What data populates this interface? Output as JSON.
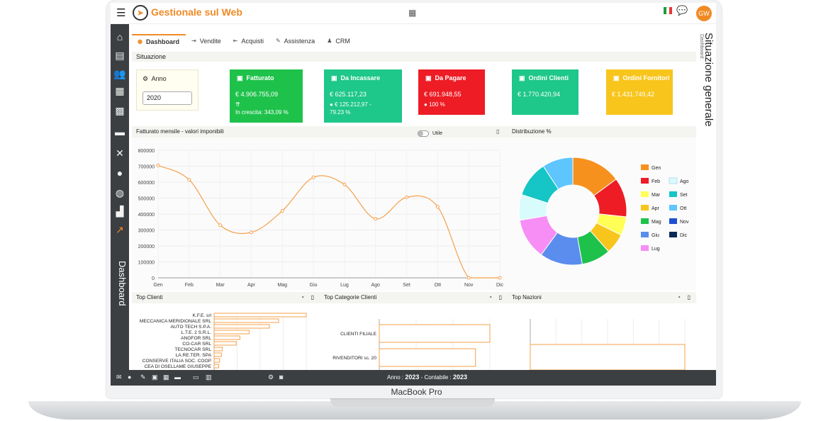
{
  "app": {
    "title": "Gestionale sul Web",
    "avatar_initials": "GW",
    "menu_icon": "menu-icon",
    "logo_icon": "cursor-logo-icon"
  },
  "device_label": "MacBook Pro",
  "right_panel": {
    "subtitle": "Dashboard:",
    "title": "Situazione generale"
  },
  "sidebar": {
    "label": "Dashboard",
    "items": [
      {
        "icon": "home-icon",
        "glyph": "⌂"
      },
      {
        "icon": "document-icon",
        "glyph": "▤"
      },
      {
        "icon": "people-icon",
        "glyph": "👥"
      },
      {
        "icon": "boxes-icon",
        "glyph": "▦"
      },
      {
        "icon": "calculator-icon",
        "glyph": "▩"
      },
      {
        "icon": "car-icon",
        "glyph": "▬"
      },
      {
        "icon": "tools-icon",
        "glyph": "✕"
      },
      {
        "icon": "user-icon",
        "glyph": "●"
      },
      {
        "icon": "globe-icon",
        "glyph": "◍"
      },
      {
        "icon": "factory-icon",
        "glyph": "▟"
      },
      {
        "icon": "chart-icon",
        "glyph": "↗"
      }
    ]
  },
  "tabs": [
    {
      "label": "Dashboard",
      "icon": "dashboard-icon",
      "glyph": "◉"
    },
    {
      "label": "Vendite",
      "icon": "sales-icon",
      "glyph": "⇥"
    },
    {
      "label": "Acquisti",
      "icon": "purchases-icon",
      "glyph": "⇤"
    },
    {
      "label": "Assistenza",
      "icon": "wrench-icon",
      "glyph": "✎"
    },
    {
      "label": "CRM",
      "icon": "crm-icon",
      "glyph": "♟"
    }
  ],
  "situazione": {
    "title": "Situazione",
    "year_label": "Anno",
    "year_value": "2020"
  },
  "kpis": [
    {
      "title": "Fatturato",
      "value": "€ 4.906.755,09",
      "sub1": "",
      "sub2": "In crescita: 343,09 %",
      "color": "#1ec24b"
    },
    {
      "title": "Da Incassare",
      "value": "€ 625.117,23",
      "sub1": "€ 125.212,97 -",
      "sub2": "79.23 %",
      "color": "#1ec78a"
    },
    {
      "title": "Da Pagare",
      "value": "€ 691.948,55",
      "sub1": "100 %",
      "sub2": "",
      "color": "#ee1c25"
    },
    {
      "title": "Ordini Clienti",
      "value": "€ 1.770.420,94",
      "sub1": "",
      "sub2": "",
      "color": "#1ec78a"
    },
    {
      "title": "Ordini Fornitori",
      "value": "€ 1.431.749,42",
      "sub1": "",
      "sub2": "",
      "color": "#f8c51c"
    }
  ],
  "fatturato_panel": {
    "title": "Fatturato mensile - valori imponibili",
    "toggle_label": "Utile"
  },
  "distribuzione_panel": {
    "title": "Distribuzione %"
  },
  "chart_data": [
    {
      "type": "line",
      "title": "Fatturato mensile - valori imponibili",
      "categories": [
        "Gen",
        "Feb",
        "Mar",
        "Apr",
        "Mag",
        "Giu",
        "Lug",
        "Ago",
        "Set",
        "Ott",
        "Nov",
        "Dic"
      ],
      "values": [
        705000,
        615000,
        330000,
        285000,
        420000,
        630000,
        585000,
        370000,
        505000,
        445000,
        0,
        0
      ],
      "ylim": [
        0,
        800000
      ],
      "yticks": [
        "800000",
        "700000",
        "600000",
        "500000",
        "400000",
        "300000",
        "200000",
        "100000",
        "0"
      ],
      "color": "#f5a04a",
      "grid": true
    },
    {
      "type": "pie",
      "title": "Distribuzione %",
      "labels": [
        "Gen",
        "Feb",
        "Mar",
        "Apr",
        "Mag",
        "Giu",
        "Lug",
        "Ago",
        "Set",
        "Ott",
        "Nov",
        "Dic"
      ],
      "values": [
        14.5,
        11.5,
        5.5,
        6.0,
        8.5,
        12.5,
        12.0,
        7.5,
        10.5,
        9.0,
        0,
        0
      ],
      "colors": [
        "#f7911e",
        "#ee1c25",
        "#ffff55",
        "#f8c51c",
        "#1ec24b",
        "#5b8def",
        "#f68ef5",
        "#d8fbfb",
        "#16c5c5",
        "#5ec5ff",
        "#1f4fd2",
        "#0a2a55"
      ],
      "legend": "right"
    },
    {
      "type": "bar",
      "title": "Top Clienti",
      "orientation": "horizontal",
      "categories": [
        "K.F.E. srl",
        "MECCANICA MERIDIONALE SRL",
        "AUTO TECH S.P.A.",
        "L.T.E. 2 S.R.L.",
        "ANOFOR SRL",
        "CO-CAR SRL",
        "TECNOCAR SRL",
        "LA.RE.TER. SPA",
        "CONSERVE ITALIA SOC. COOP",
        "CEA DI OSELLAME GIUSEPPE"
      ],
      "values": [
        100,
        70,
        60,
        38,
        28,
        24,
        9,
        8,
        6,
        5
      ]
    },
    {
      "type": "bar",
      "title": "Top Categorie Clienti",
      "orientation": "horizontal",
      "categories": [
        "CLIENTI FILIALE",
        "RIVENDITORI sc. 20"
      ],
      "values": [
        100,
        87
      ]
    },
    {
      "type": "bar",
      "title": "Top Nazioni",
      "orientation": "horizontal",
      "categories": [
        ""
      ],
      "values": [
        100
      ]
    }
  ],
  "bottom_panels": [
    {
      "title": "Top Clienti"
    },
    {
      "title": "Top Categorie Clienti"
    },
    {
      "title": "Top Nazioni"
    }
  ],
  "footer": {
    "anno_label": "Anno :",
    "anno_value": "2023",
    "contabile_label": "- Contabile :",
    "contabile_value": "2023"
  }
}
